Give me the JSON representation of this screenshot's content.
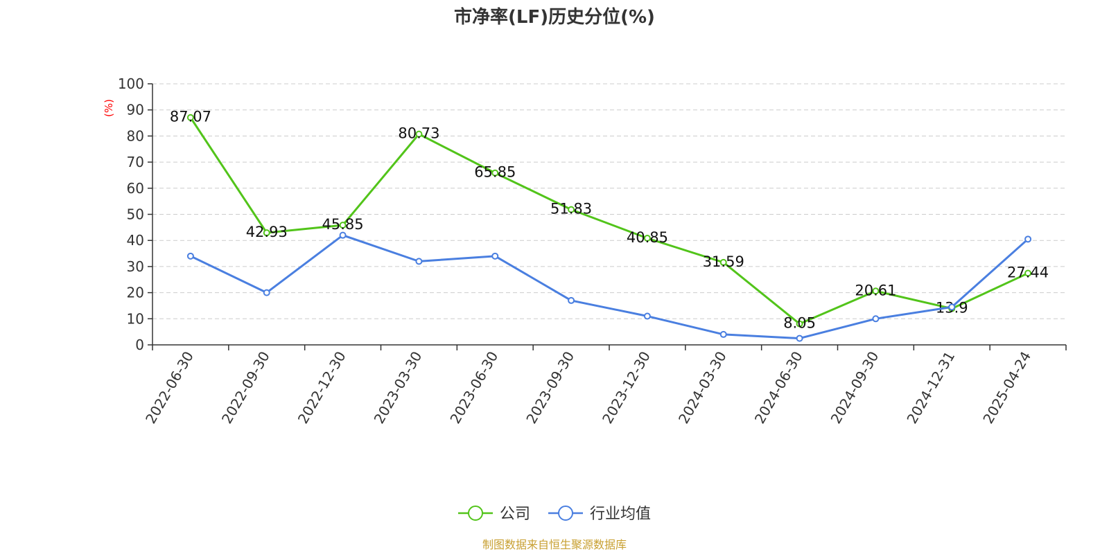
{
  "chart_data": {
    "type": "line",
    "title": "市净率(LF)历史分位(%)",
    "ylabel": "(%)",
    "xlabel": "",
    "ylim": [
      0,
      100
    ],
    "yticks": [
      0,
      10,
      20,
      30,
      40,
      50,
      60,
      70,
      80,
      90,
      100
    ],
    "categories": [
      "2022-06-30",
      "2022-09-30",
      "2022-12-30",
      "2023-03-30",
      "2023-06-30",
      "2023-09-30",
      "2023-12-30",
      "2024-03-30",
      "2024-06-30",
      "2024-09-30",
      "2024-12-31",
      "2025-04-24"
    ],
    "series": [
      {
        "name": "公司",
        "color": "#52c41a",
        "values": [
          87.07,
          42.93,
          45.85,
          80.73,
          65.85,
          51.83,
          40.85,
          31.59,
          8.05,
          20.61,
          13.9,
          27.44
        ],
        "labels": [
          "87.07",
          "42.93",
          "45.85",
          "80.73",
          "65.85",
          "51.83",
          "40.85",
          "31.59",
          "8.05",
          "20.61",
          "13.9",
          "27.44"
        ]
      },
      {
        "name": "行业均值",
        "color": "#4a7fe0",
        "values": [
          34,
          20,
          42,
          32,
          34,
          17,
          11,
          4,
          2.5,
          10,
          14.5,
          40.5
        ]
      }
    ],
    "grid": true,
    "legend_position": "bottom-center",
    "unit_label_color": "#ff0000"
  },
  "source_text": "制图数据来自恒生聚源数据库",
  "source_color": "#c8a032"
}
